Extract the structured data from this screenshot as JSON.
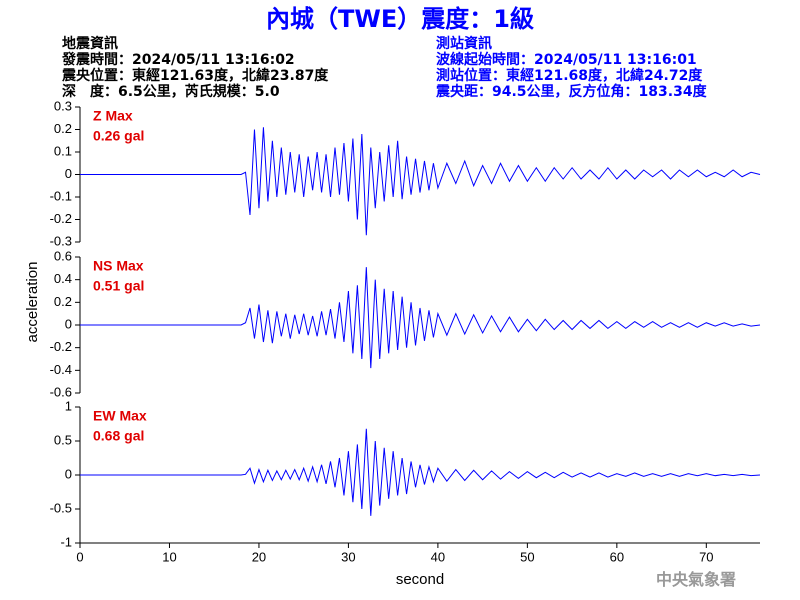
{
  "header": {
    "title": "內城（TWE）震度：1級",
    "event": [
      "地震資訊",
      "發震時間：2024/05/11 13:16:02",
      "震央位置：東經121.63度，北緯23.87度",
      "深　度：6.5公里，芮氏規模：5.0"
    ],
    "station": [
      "測站資訊",
      "波線起始時間：2024/05/11 13:16:01",
      "測站位置：東經121.68度，北緯24.72度",
      "震央距：94.5公里，反方位角：183.34度"
    ]
  },
  "footer": "中央氣象署",
  "chart_data": [
    {
      "type": "line",
      "annotation": [
        "Z Max",
        "0.26 gal"
      ],
      "x": [
        0,
        5,
        10,
        15,
        18,
        18.5,
        19,
        19.5,
        20,
        20.5,
        21,
        21.5,
        22,
        22.5,
        23,
        23.5,
        24,
        24.5,
        25,
        25.5,
        26,
        26.5,
        27,
        27.5,
        28,
        28.5,
        29,
        29.5,
        30,
        30.5,
        31,
        31.5,
        32,
        32.5,
        33,
        33.5,
        34,
        34.5,
        35,
        35.5,
        36,
        36.5,
        37,
        37.5,
        38,
        38.5,
        39,
        39.5,
        40,
        41,
        42,
        43,
        44,
        45,
        46,
        47,
        48,
        49,
        50,
        51,
        52,
        53,
        54,
        55,
        56,
        57,
        58,
        59,
        60,
        61,
        62,
        63,
        64,
        65,
        66,
        67,
        68,
        69,
        70,
        71,
        72,
        73,
        74,
        75,
        76
      ],
      "series": [
        {
          "color": "#0000ff",
          "values": [
            0,
            0,
            0,
            0,
            0,
            0.01,
            -0.18,
            0.2,
            -0.15,
            0.21,
            -0.12,
            0.15,
            -0.1,
            0.12,
            -0.09,
            0.1,
            -0.08,
            0.09,
            -0.1,
            0.08,
            -0.07,
            0.1,
            -0.08,
            0.09,
            -0.1,
            0.12,
            -0.09,
            0.14,
            -0.12,
            0.16,
            -0.2,
            0.18,
            -0.27,
            0.12,
            -0.15,
            0.1,
            -0.12,
            0.13,
            -0.1,
            0.15,
            -0.11,
            0.08,
            -0.09,
            0.07,
            -0.08,
            0.06,
            -0.07,
            0.05,
            -0.06,
            0.05,
            -0.04,
            0.06,
            -0.05,
            0.04,
            -0.04,
            0.05,
            -0.03,
            0.04,
            -0.03,
            0.03,
            -0.03,
            0.03,
            -0.02,
            0.03,
            -0.02,
            0.02,
            -0.02,
            0.03,
            -0.02,
            0.02,
            -0.02,
            0.02,
            -0.01,
            0.02,
            -0.02,
            0.02,
            -0.01,
            0.02,
            -0.01,
            0.01,
            -0.01,
            0.02,
            -0.01,
            0.01,
            0
          ]
        }
      ],
      "ylim": [
        -0.3,
        0.3
      ],
      "yticks": [
        0.3,
        0.2,
        0.1,
        0,
        -0.1,
        -0.2,
        -0.3
      ]
    },
    {
      "type": "line",
      "annotation": [
        "NS Max",
        "0.51 gal"
      ],
      "ylabel": "acceleration",
      "x": [
        0,
        5,
        10,
        15,
        18,
        18.5,
        19,
        19.5,
        20,
        20.5,
        21,
        21.5,
        22,
        22.5,
        23,
        23.5,
        24,
        24.5,
        25,
        25.5,
        26,
        26.5,
        27,
        27.5,
        28,
        28.5,
        29,
        29.5,
        30,
        30.5,
        31,
        31.5,
        32,
        32.5,
        33,
        33.5,
        34,
        34.5,
        35,
        35.5,
        36,
        36.5,
        37,
        37.5,
        38,
        38.5,
        39,
        39.5,
        40,
        41,
        42,
        43,
        44,
        45,
        46,
        47,
        48,
        49,
        50,
        51,
        52,
        53,
        54,
        55,
        56,
        57,
        58,
        59,
        60,
        61,
        62,
        63,
        64,
        65,
        66,
        67,
        68,
        69,
        70,
        71,
        72,
        73,
        74,
        75,
        76
      ],
      "series": [
        {
          "color": "#0000ff",
          "values": [
            0,
            0,
            0,
            0,
            0,
            0.02,
            0.15,
            -0.12,
            0.18,
            -0.15,
            0.13,
            -0.16,
            0.12,
            -0.1,
            0.1,
            -0.12,
            0.09,
            -0.08,
            0.1,
            -0.09,
            0.08,
            -0.1,
            0.12,
            -0.09,
            0.14,
            -0.12,
            0.2,
            -0.15,
            0.3,
            -0.25,
            0.35,
            -0.3,
            0.51,
            -0.38,
            0.4,
            -0.3,
            0.32,
            -0.25,
            0.3,
            -0.22,
            0.25,
            -0.2,
            0.2,
            -0.18,
            0.15,
            -0.14,
            0.13,
            -0.11,
            0.1,
            -0.09,
            0.1,
            -0.08,
            0.09,
            -0.07,
            0.08,
            -0.06,
            0.07,
            -0.06,
            0.05,
            -0.05,
            0.05,
            -0.04,
            0.04,
            -0.04,
            0.04,
            -0.03,
            0.04,
            -0.03,
            0.03,
            -0.03,
            0.03,
            -0.02,
            0.03,
            -0.02,
            0.02,
            -0.02,
            0.02,
            -0.02,
            0.02,
            -0.01,
            0.02,
            -0.01,
            0.01,
            -0.01,
            0
          ]
        }
      ],
      "ylim": [
        -0.6,
        0.6
      ],
      "yticks": [
        0.6,
        0.4,
        0.2,
        0,
        -0.2,
        -0.4,
        -0.6
      ]
    },
    {
      "type": "line",
      "annotation": [
        "EW Max",
        "0.68 gal"
      ],
      "xlabel": "second",
      "x": [
        0,
        5,
        10,
        15,
        18,
        18.5,
        19,
        19.5,
        20,
        20.5,
        21,
        21.5,
        22,
        22.5,
        23,
        23.5,
        24,
        24.5,
        25,
        25.5,
        26,
        26.5,
        27,
        27.5,
        28,
        28.5,
        29,
        29.5,
        30,
        30.5,
        31,
        31.5,
        32,
        32.5,
        33,
        33.5,
        34,
        34.5,
        35,
        35.5,
        36,
        36.5,
        37,
        37.5,
        38,
        38.5,
        39,
        39.5,
        40,
        41,
        42,
        43,
        44,
        45,
        46,
        47,
        48,
        49,
        50,
        51,
        52,
        53,
        54,
        55,
        56,
        57,
        58,
        59,
        60,
        61,
        62,
        63,
        64,
        65,
        66,
        67,
        68,
        69,
        70,
        71,
        72,
        73,
        74,
        75,
        76
      ],
      "series": [
        {
          "color": "#0000ff",
          "values": [
            0,
            0,
            0,
            0,
            0,
            0.01,
            0.1,
            -0.12,
            0.08,
            -0.1,
            0.07,
            -0.08,
            0.06,
            -0.07,
            0.07,
            -0.06,
            0.08,
            -0.07,
            0.1,
            -0.09,
            0.12,
            -0.1,
            0.15,
            -0.13,
            0.2,
            -0.18,
            0.25,
            -0.3,
            0.35,
            -0.4,
            0.45,
            -0.5,
            0.68,
            -0.6,
            0.5,
            -0.45,
            0.4,
            -0.35,
            0.35,
            -0.3,
            0.25,
            -0.28,
            0.2,
            -0.18,
            0.15,
            -0.14,
            0.12,
            -0.1,
            0.1,
            -0.09,
            0.08,
            -0.08,
            0.07,
            -0.07,
            0.06,
            -0.06,
            0.05,
            -0.05,
            0.05,
            -0.04,
            0.04,
            -0.04,
            0.04,
            -0.03,
            0.03,
            -0.03,
            0.03,
            -0.03,
            0.02,
            -0.02,
            0.03,
            -0.02,
            0.02,
            -0.02,
            0.02,
            -0.02,
            0.02,
            -0.01,
            0.02,
            -0.01,
            0.01,
            -0.01,
            0.01,
            -0.01,
            0
          ]
        }
      ],
      "ylim": [
        -1,
        1
      ],
      "yticks": [
        1,
        0.5,
        0,
        -0.5,
        -1
      ],
      "xlim": [
        0,
        76
      ],
      "xticks": [
        0,
        10,
        20,
        30,
        40,
        50,
        60,
        70
      ]
    }
  ]
}
